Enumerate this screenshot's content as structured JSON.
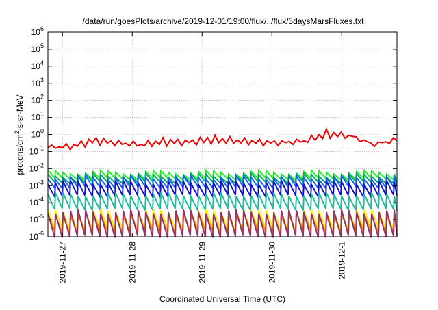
{
  "chart_data": {
    "type": "line",
    "title": "/data/run/goesPlots/archive/2019-12-01/19:00/flux/../flux/5daysMarsFluxes.txt",
    "xlabel": "Coordinated Universal Time (UTC)",
    "ylabel": {
      "pre": "protons/cm",
      "sup": "2",
      "post": "-s-sr-MeV"
    },
    "y_scale": "log",
    "ylim_exponents": [
      -6,
      6
    ],
    "y_tick_base": "10",
    "y_tick_exponents": [
      "-6",
      "-5",
      "-4",
      "-3",
      "-2",
      "-1",
      "0",
      "1",
      "2",
      "3",
      "4",
      "5",
      "6"
    ],
    "xlim": [
      "2019-11-26T19:00",
      "2019-12-01T19:00"
    ],
    "x_ticks": [
      "2019-11-27",
      "2019-11-28",
      "2019-11-29",
      "2019-11-30",
      "2019-12-1"
    ],
    "grid": true,
    "legend": "none",
    "series": [
      {
        "color": "#ee0000",
        "envelope_high": [
          0.2,
          0.3,
          0.9,
          0.45,
          0.35,
          0.8,
          0.5,
          1.1,
          0.7,
          0.6,
          0.45,
          0.55,
          2.5,
          1.0,
          0.3,
          0.7
        ],
        "envelope_low": [
          0.15,
          0.1,
          0.15,
          0.18,
          0.15,
          0.12,
          0.2,
          0.15,
          0.2,
          0.16,
          0.2,
          0.25,
          0.3,
          0.6,
          0.2,
          0.3
        ]
      },
      {
        "color": "#22ee22",
        "high": 0.006,
        "low": 0.0025
      },
      {
        "color": "#00aa66",
        "high": 0.004,
        "low": 0.0015
      },
      {
        "color": "#1166ee",
        "high": 0.003,
        "low": 0.0008
      },
      {
        "color": "#1111cc",
        "high": 0.0015,
        "low": 0.00025
      },
      {
        "color": "#22bb99",
        "high": 0.0003,
        "low": 4e-05
      },
      {
        "color": "#ffee00",
        "high": 3e-05,
        "low": 3e-06
      },
      {
        "color": "#ee8800",
        "high": 2e-05,
        "low": 2e-06
      },
      {
        "color": "#993366",
        "high": 3e-05,
        "low": 1e-06
      }
    ]
  }
}
